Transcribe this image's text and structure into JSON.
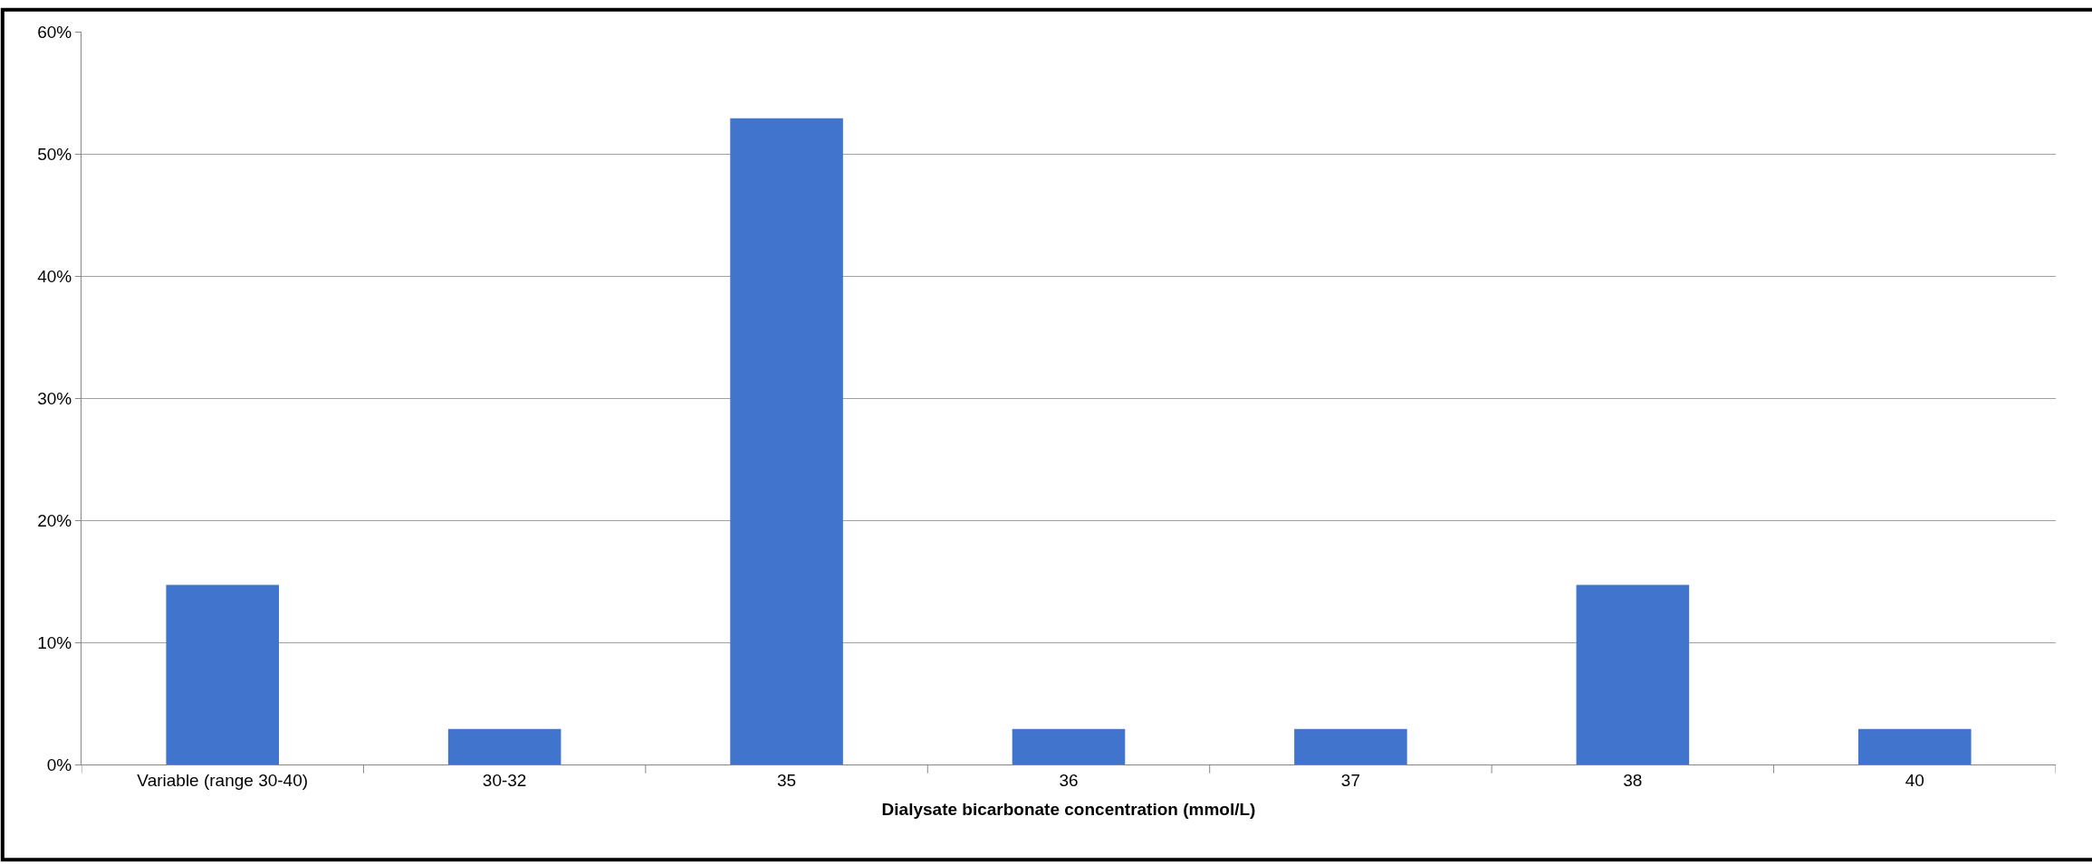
{
  "chart_data": {
    "type": "bar",
    "xlabel": "Dialysate bicarbonate concentration (mmol/L)",
    "categories": [
      "Variable (range 30-40)",
      "30-32",
      "35",
      "36",
      "37",
      "38",
      "40"
    ],
    "values": [
      14.7,
      2.9,
      52.9,
      2.9,
      2.9,
      14.7,
      2.9
    ],
    "color": "#4174cc",
    "ylim": [
      0,
      60
    ],
    "yticks": [
      {
        "value": 0,
        "label": "0%"
      },
      {
        "value": 10,
        "label": "10%"
      },
      {
        "value": 20,
        "label": "20%"
      },
      {
        "value": 30,
        "label": "30%"
      },
      {
        "value": 40,
        "label": "40%"
      },
      {
        "value": 50,
        "label": "50%"
      },
      {
        "value": 60,
        "label": "60%"
      }
    ],
    "grid": "y",
    "legend": false
  }
}
